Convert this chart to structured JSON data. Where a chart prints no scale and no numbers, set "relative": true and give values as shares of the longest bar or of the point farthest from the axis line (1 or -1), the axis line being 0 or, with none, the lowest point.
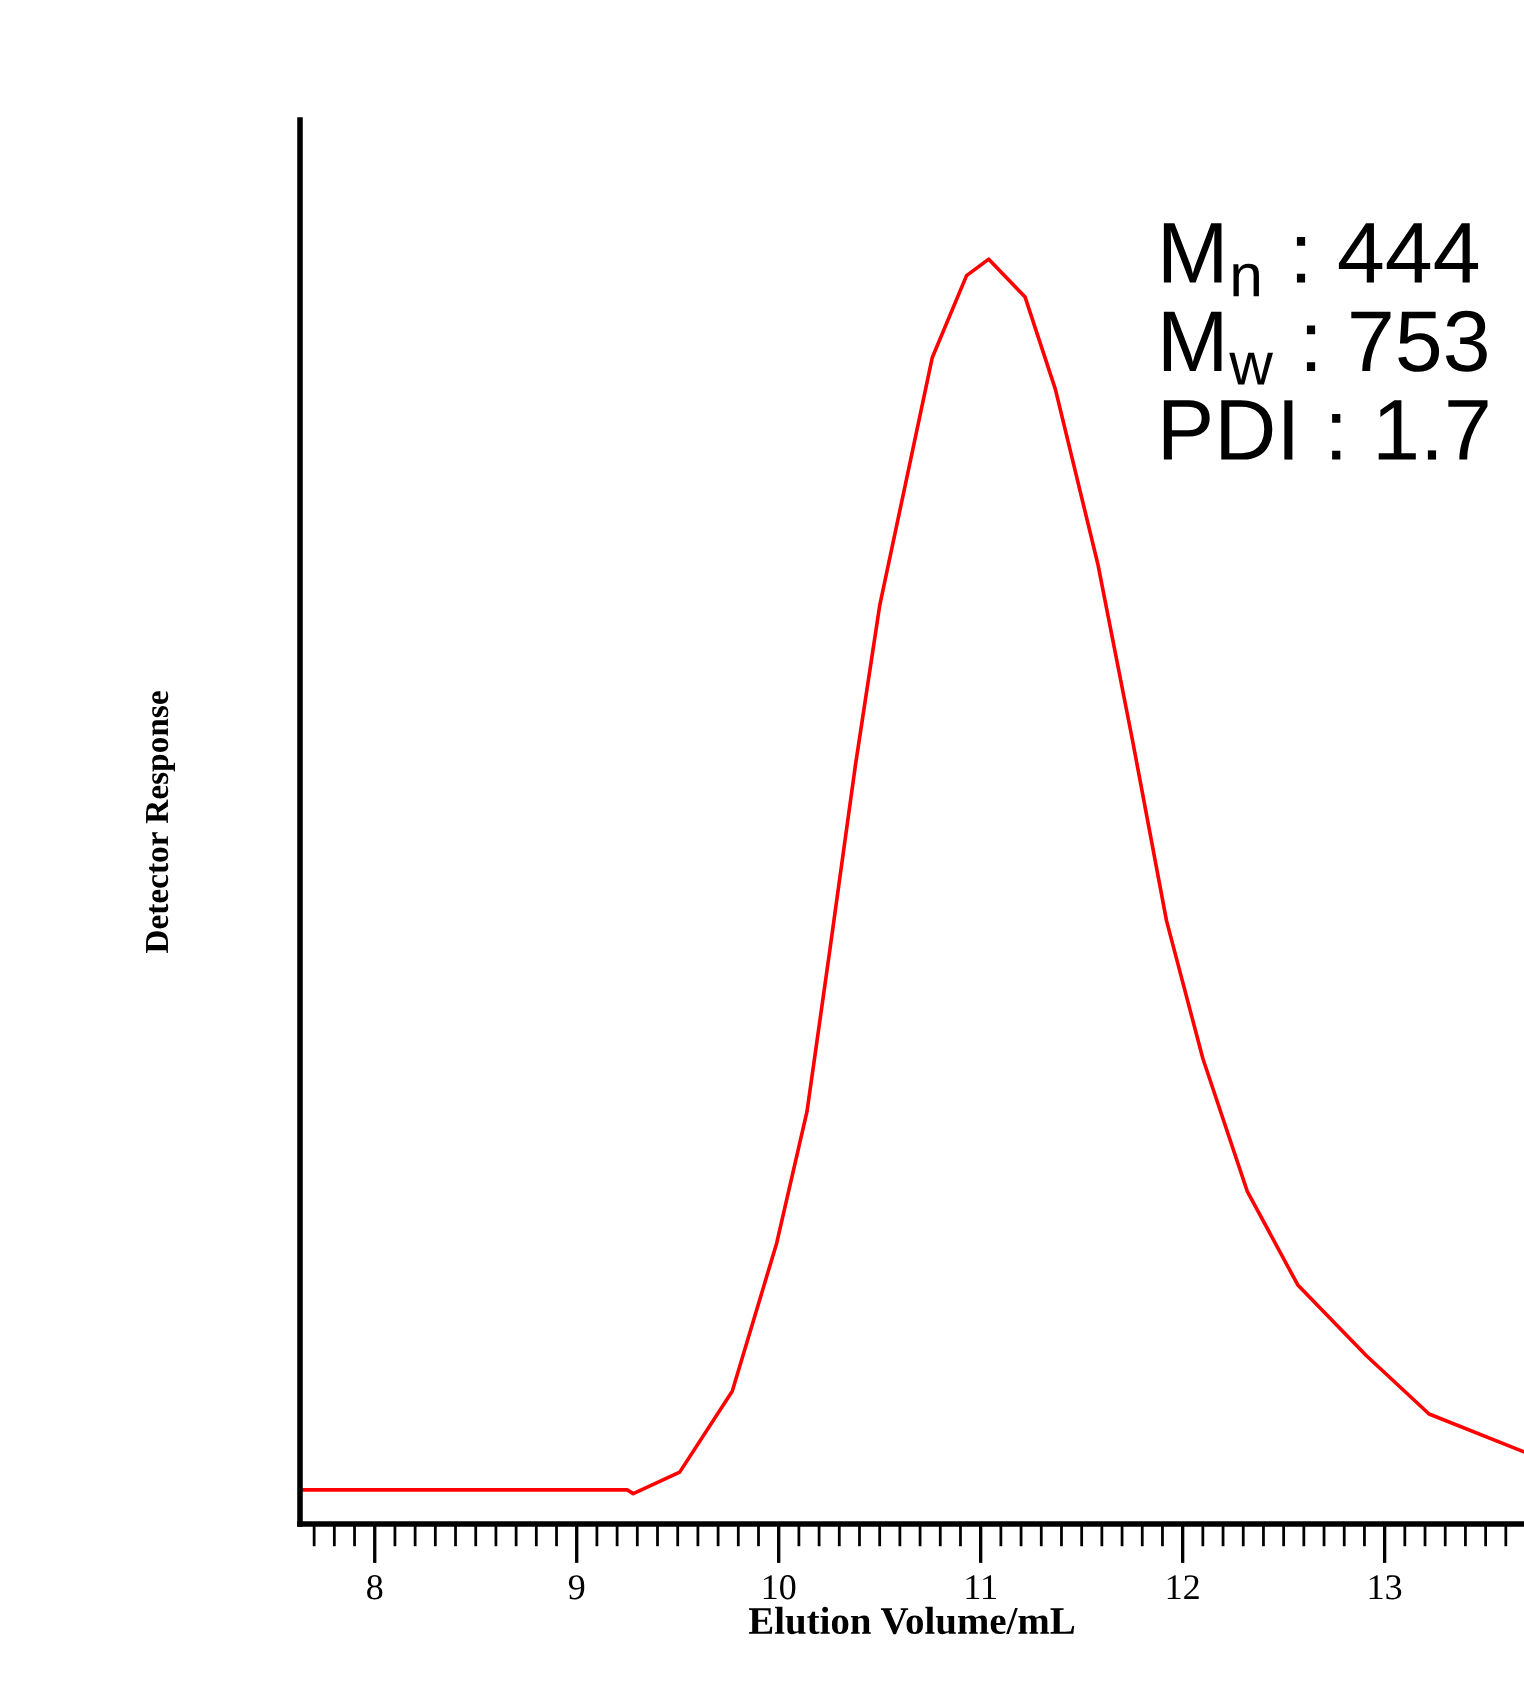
{
  "chart_data": {
    "type": "line",
    "relative": true,
    "xlabel": "Elution Volume/mL",
    "ylabel": "Detector Response",
    "xlim": [
      7.63,
      13.69
    ],
    "xticks": [
      8,
      9,
      10,
      11,
      12,
      13
    ],
    "marker": "none",
    "line_style": "solid",
    "annotations": [
      "M$_{n}$ : 444",
      "M$_{w}$ : 753",
      "PDI : 1.7"
    ],
    "series": [
      {
        "color": "#ff0000",
        "x": [
          7.63,
          9.25,
          9.28,
          9.51,
          9.77,
          9.99,
          10.14,
          10.25,
          10.38,
          10.5,
          10.63,
          10.76,
          10.93,
          11.04,
          11.22,
          11.37,
          11.58,
          11.75,
          11.92,
          12.1,
          12.32,
          12.57,
          12.91,
          13.22,
          13.69
        ],
        "values": [
          0.027,
          0.027,
          0.024,
          0.041,
          0.105,
          0.222,
          0.326,
          0.45,
          0.6,
          0.726,
          0.824,
          0.922,
          0.987,
          1.0,
          0.97,
          0.897,
          0.759,
          0.621,
          0.477,
          0.368,
          0.263,
          0.189,
          0.133,
          0.087,
          0.057
        ]
      }
    ]
  }
}
